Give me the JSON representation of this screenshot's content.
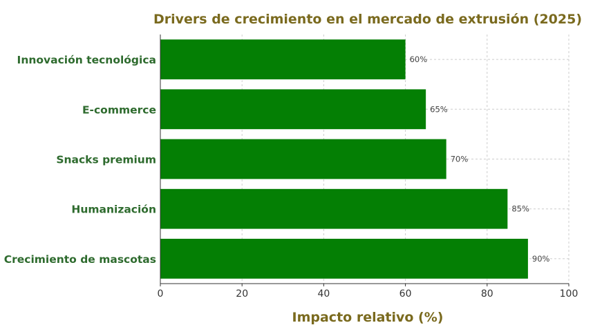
{
  "chart_data": {
    "type": "bar",
    "orientation": "horizontal",
    "title": "Drivers de crecimiento en el mercado de extrusión (2025)",
    "xlabel": "Impacto relativo (%)",
    "ylabel": "",
    "categories": [
      "Innovación tecnológica",
      "E-commerce",
      "Snacks premium",
      "Humanización",
      "Crecimiento de mascotas"
    ],
    "values": [
      60,
      65,
      70,
      85,
      90
    ],
    "data_labels": [
      "60%",
      "65%",
      "70%",
      "85%",
      "90%"
    ],
    "xlim": [
      0,
      100
    ],
    "xticks": [
      0,
      20,
      40,
      60,
      80,
      100
    ],
    "xtick_labels": [
      "0",
      "20",
      "40",
      "60",
      "80",
      "100"
    ],
    "grid": true,
    "colors": {
      "bar": "#047f04",
      "title": "#7a6a1e",
      "xlabel": "#7a6a1e",
      "category_labels": "#2e6b2e",
      "grid": "#cccccc"
    }
  }
}
